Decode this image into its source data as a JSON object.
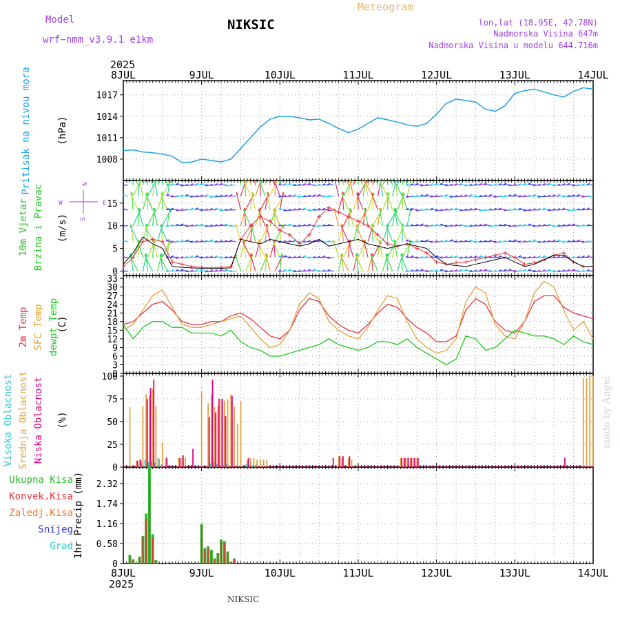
{
  "header": {
    "model_label": "Model",
    "model_name": "wrf−nmm_v3.9.1  e1km",
    "station": "NIKSIC",
    "product": "Meteogram",
    "coords": "lon,lat (18.95E, 42.78N)",
    "elevation": "Nadmorska Visina 647m",
    "model_elevation": "Nadmorska Visina u modelu 644.716m",
    "year": "2025",
    "footer_station": "NIKSIC",
    "credit": "made by Angel"
  },
  "colors": {
    "pressure": "#1ea0e6",
    "temp2m": "#e6323c",
    "sfc": "#e1a03c",
    "dew": "#1ec81e",
    "cloud_high": "#2ec8d2",
    "cloud_mid": "#e1a03c",
    "cloud_low": "#e6007e",
    "rain_total": "#2db82d",
    "rain_conv": "#e6323c",
    "freezing": "#f07828",
    "snow": "#3232e6",
    "hail": "#23c8c8",
    "mslp_wind_label": "#a040e6"
  },
  "days": [
    "8JUL",
    "9JUL",
    "10JUL",
    "11JUL",
    "12JUL",
    "13JUL",
    "14JUL"
  ],
  "chart_data": [
    {
      "type": "line",
      "panel": "pressure",
      "ylabel_lines": [
        "Pritisak na nivou mora"
      ],
      "unit": "(hPa)",
      "yticks": [
        "1008",
        "1011",
        "1014",
        "1017"
      ],
      "ylim": [
        1005,
        1019
      ],
      "x_hours": [
        0,
        3,
        6,
        9,
        12,
        15,
        18,
        21,
        24,
        27,
        30,
        33,
        36,
        39,
        42,
        45,
        48,
        51,
        54,
        57,
        60,
        63,
        66,
        69,
        72,
        75,
        78,
        81,
        84,
        87,
        90,
        93,
        96,
        99,
        102,
        105,
        108,
        111,
        114,
        117,
        120,
        123,
        126,
        129,
        132,
        135,
        138,
        141,
        144
      ],
      "values": [
        1009.2,
        1009.3,
        1009.0,
        1008.9,
        1008.7,
        1008.4,
        1007.5,
        1007.6,
        1008.0,
        1007.8,
        1007.6,
        1008.0,
        1009.5,
        1011.0,
        1012.5,
        1013.6,
        1014.0,
        1014.0,
        1013.8,
        1013.5,
        1013.6,
        1013.0,
        1012.3,
        1011.7,
        1012.2,
        1013.0,
        1013.8,
        1013.5,
        1013.2,
        1012.8,
        1012.6,
        1013.0,
        1014.3,
        1015.8,
        1016.4,
        1016.2,
        1016.0,
        1015.0,
        1014.7,
        1015.5,
        1017.2,
        1017.6,
        1017.8,
        1017.4,
        1017.0,
        1016.7,
        1017.5,
        1018.0,
        1017.8
      ]
    },
    {
      "type": "line",
      "panel": "wind",
      "ylabel_lines": [
        "10m Vjetar",
        "Brzina i Pravac"
      ],
      "unit": "(m/s)",
      "yticks": [
        "0",
        "5",
        "10",
        "15"
      ],
      "ylim": [
        -1,
        20
      ],
      "compass": {
        "n": "N",
        "e": "E",
        "w": "W",
        "s": "S"
      },
      "x_hours": [
        0,
        3,
        6,
        9,
        12,
        15,
        18,
        21,
        24,
        27,
        30,
        33,
        36,
        39,
        42,
        45,
        48,
        51,
        54,
        57,
        60,
        63,
        66,
        69,
        72,
        75,
        78,
        81,
        84,
        87,
        90,
        93,
        96,
        99,
        102,
        105,
        108,
        111,
        114,
        117,
        120,
        123,
        126,
        129,
        132,
        135,
        138,
        141,
        144
      ],
      "series": [
        {
          "values": [
            1.5,
            4.0,
            7.5,
            6.0,
            5.0,
            1.0,
            0.8,
            0.7,
            0.6,
            0.5,
            0.6,
            0.7,
            7.0,
            6.5,
            6.0,
            7.0,
            6.5,
            6.0,
            5.5,
            6.0,
            7.0,
            5.5,
            6.0,
            6.5,
            7.0,
            6.0,
            5.5,
            5.0,
            5.5,
            6.0,
            5.5,
            5.0,
            3.0,
            1.5,
            1.2,
            1.0,
            1.5,
            2.0,
            2.5,
            3.0,
            2.0,
            1.0,
            1.5,
            2.5,
            3.5,
            3.5,
            2.0,
            1.0,
            1.0
          ]
        },
        {
          "values": [
            1.0,
            3.0,
            6.5,
            7.0,
            6.5,
            2.0,
            1.5,
            1.0,
            0.8,
            0.7,
            0.8,
            1.0,
            7.0,
            10.0,
            12.0,
            11.0,
            9.0,
            8.0,
            6.0,
            8.0,
            12.0,
            14.0,
            13.0,
            12.0,
            11.0,
            10.0,
            8.0,
            6.0,
            5.5,
            6.0,
            5.0,
            4.0,
            2.0,
            1.5,
            1.8,
            2.0,
            2.5,
            3.0,
            3.5,
            4.0,
            3.0,
            1.5,
            1.8,
            2.5,
            3.5,
            4.0,
            2.0,
            1.0,
            1.0
          ]
        }
      ]
    },
    {
      "type": "line",
      "panel": "temperature",
      "ylabel_lines": [
        "2m Temp",
        "SFC Temp",
        "dewpt Temp"
      ],
      "unit": "(C)",
      "yticks": [
        "0",
        "3",
        "6",
        "9",
        "12",
        "15",
        "18",
        "21",
        "24",
        "27",
        "30",
        "33"
      ],
      "ylim": [
        0,
        34
      ],
      "x_hours": [
        0,
        3,
        6,
        9,
        12,
        15,
        18,
        21,
        24,
        27,
        30,
        33,
        36,
        39,
        42,
        45,
        48,
        51,
        54,
        57,
        60,
        63,
        66,
        69,
        72,
        75,
        78,
        81,
        84,
        87,
        90,
        93,
        96,
        99,
        102,
        105,
        108,
        111,
        114,
        117,
        120,
        123,
        126,
        129,
        132,
        135,
        138,
        141,
        144
      ],
      "series": [
        {
          "name": "2m Temp",
          "values": [
            17,
            18,
            21,
            24,
            25,
            22,
            18,
            17,
            17,
            18,
            18,
            20,
            21,
            19,
            16,
            13,
            12,
            15,
            22,
            26,
            25,
            20,
            17,
            15,
            14,
            17,
            21,
            24,
            23,
            19,
            16,
            14,
            11,
            11,
            13,
            22,
            26,
            24,
            18,
            15,
            14,
            18,
            25,
            27,
            27,
            23,
            21,
            20,
            19
          ]
        },
        {
          "name": "SFC Temp",
          "values": [
            15,
            17,
            22,
            27,
            29,
            23,
            17,
            16,
            16,
            17,
            18,
            19,
            20,
            16,
            12,
            9,
            10,
            15,
            24,
            28,
            26,
            18,
            15,
            13,
            12,
            16,
            22,
            27,
            26,
            18,
            12,
            9,
            7,
            8,
            12,
            25,
            30,
            28,
            17,
            13,
            12,
            18,
            28,
            32,
            30,
            22,
            15,
            18,
            12
          ]
        },
        {
          "name": "dewpt Temp",
          "values": [
            17,
            12,
            16,
            18,
            18,
            16,
            16,
            14,
            14,
            14,
            13,
            15,
            11,
            9,
            8,
            6,
            6,
            7,
            8,
            9,
            10,
            12,
            10,
            9,
            8,
            9,
            11,
            11,
            10,
            12,
            9,
            7,
            5,
            3,
            5,
            13,
            12,
            8,
            9,
            12,
            15,
            14,
            13,
            13,
            12,
            10,
            13,
            11,
            10
          ]
        }
      ]
    },
    {
      "type": "bar",
      "panel": "clouds",
      "ylabel_lines": [
        "Visoka Oblacnost",
        "Srednja Oblacnost",
        "Niska Oblacnost"
      ],
      "unit": "(%)",
      "yticks": [
        "0",
        "25",
        "50",
        "75",
        "100"
      ],
      "ylim": [
        0,
        103
      ],
      "x_hours": [
        2,
        4,
        5,
        6,
        7,
        8,
        9,
        10,
        11,
        12,
        13,
        17,
        18,
        19,
        21,
        24,
        26,
        27,
        28,
        29,
        30,
        31,
        32,
        33,
        34,
        35,
        36,
        38,
        39,
        40,
        41,
        42,
        43,
        44,
        46,
        64,
        66,
        67,
        69,
        70,
        85,
        86,
        87,
        88,
        89,
        90,
        135,
        141,
        142,
        143,
        144
      ],
      "series": [
        {
          "name": "Visoka Oblacnost",
          "values": [
            0,
            0,
            2,
            4,
            8,
            6,
            6,
            5,
            10,
            3,
            0,
            0,
            0,
            0,
            0,
            0,
            0,
            4,
            6,
            3,
            2,
            2,
            3,
            0,
            0,
            0,
            0,
            3,
            2,
            2,
            3,
            0,
            0,
            0,
            0,
            0,
            0,
            0,
            0,
            0,
            0,
            0,
            0,
            0,
            0,
            0,
            0,
            0,
            0,
            0,
            0
          ]
        },
        {
          "name": "Srednja Oblacnost",
          "values": [
            66,
            7,
            8,
            67,
            80,
            78,
            86,
            67,
            9,
            27,
            10,
            10,
            10,
            10,
            0,
            83,
            70,
            80,
            66,
            67,
            75,
            73,
            74,
            80,
            66,
            48,
            73,
            8,
            10,
            10,
            8,
            9,
            8,
            8,
            0,
            0,
            12,
            10,
            10,
            8,
            10,
            10,
            10,
            10,
            10,
            10,
            0,
            98,
            98,
            100,
            100
          ]
        },
        {
          "name": "Niska Oblacnost",
          "values": [
            0,
            7,
            8,
            0,
            75,
            87,
            96,
            0,
            0,
            0,
            10,
            10,
            13,
            0,
            20,
            0,
            55,
            96,
            60,
            75,
            75,
            56,
            0,
            78,
            0,
            0,
            0,
            10,
            0,
            0,
            0,
            0,
            0,
            0,
            0,
            10,
            12,
            12,
            12,
            0,
            10,
            10,
            10,
            10,
            10,
            10,
            10,
            0,
            0,
            0,
            0
          ]
        }
      ]
    },
    {
      "type": "bar",
      "panel": "precip",
      "ylabel_lines": [
        "1hr Precip (mm)"
      ],
      "legend": [
        "Ukupna Kisa",
        "Konvek.Kisa",
        "Zaledj.Kisa",
        "Snijeg",
        "Grad"
      ],
      "yticks": [
        "0",
        "0.58",
        "1.16",
        "1.74",
        "2.32"
      ],
      "ylim": [
        0,
        2.8
      ],
      "x_hours": [
        2,
        3,
        4,
        5,
        6,
        7,
        8,
        9,
        10,
        11,
        12,
        24,
        25,
        26,
        27,
        28,
        29,
        30,
        31,
        32,
        33,
        34,
        35,
        36,
        37
      ],
      "series": [
        {
          "name": "Ukupna Kisa",
          "values": [
            0.25,
            0.12,
            0.0,
            0.2,
            0.8,
            1.45,
            2.85,
            0.85,
            0.1,
            0.0,
            0.0,
            1.15,
            0.45,
            0.5,
            0.4,
            0.15,
            0.3,
            0.7,
            0.65,
            0.35,
            0.05,
            0.15,
            0.0,
            0.0,
            0.0
          ]
        },
        {
          "name": "Konvek.Kisa",
          "values": [
            0.2,
            0.1,
            0.0,
            0.18,
            0.75,
            1.3,
            2.6,
            0.75,
            0.08,
            0.0,
            0.0,
            1.1,
            0.4,
            0.45,
            0.35,
            0.12,
            0.28,
            0.65,
            0.6,
            0.3,
            0.04,
            0.12,
            0.0,
            0.0,
            0.0
          ]
        }
      ]
    }
  ]
}
